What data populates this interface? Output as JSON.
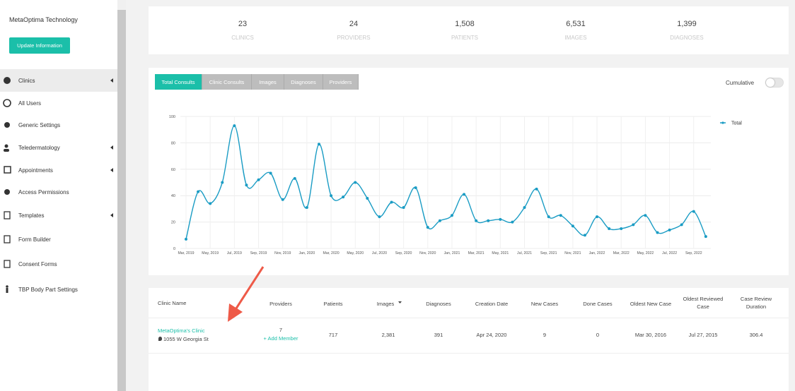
{
  "sidebar": {
    "org_name": "MetaOptima Technology",
    "button": "Update Information",
    "items": [
      "Clinics",
      "All Users",
      "Generic Settings",
      "Teledermatology",
      "Appointments",
      "Access Permissions",
      "Templates",
      "Form Builder",
      "Consent Forms",
      "TBP Body Part Settings"
    ]
  },
  "stats": [
    {
      "value": "23",
      "label": "CLINICS"
    },
    {
      "value": "24",
      "label": "PROVIDERS"
    },
    {
      "value": "1,508",
      "label": "PATIENTS"
    },
    {
      "value": "6,531",
      "label": "IMAGES"
    },
    {
      "value": "1,399",
      "label": "DIAGNOSES"
    }
  ],
  "tabs": [
    "Total Consults",
    "Clinic Consults",
    "Images",
    "Diagnoses",
    "Providers"
  ],
  "cumulative_label": "Cumulative",
  "chart_data": {
    "type": "line",
    "categories": [
      "Mar, 2019",
      null,
      "May, 2019",
      null,
      "Jul, 2019",
      null,
      "Sep, 2019",
      null,
      "Nov, 2019",
      null,
      "Jan, 2020",
      null,
      "Mar, 2020",
      null,
      "May, 2020",
      null,
      "Jul, 2020",
      null,
      "Sep, 2020",
      null,
      "Nov, 2020",
      null,
      "Jan, 2021",
      null,
      "Mar, 2021",
      null,
      "May, 2021",
      null,
      "Jul, 2021",
      null,
      "Sep, 2021",
      null,
      "Nov, 2021",
      null,
      "Jan, 2022",
      null,
      "Mar, 2022",
      null,
      "May, 2022",
      null,
      "Jul, 2022",
      null,
      "Sep, 2022",
      null
    ],
    "series": [
      {
        "name": "Total",
        "color": "#1a9cc4",
        "values": [
          7,
          43,
          34,
          50,
          93,
          48,
          52,
          57,
          37,
          53,
          31,
          79,
          40,
          39,
          50,
          38,
          24,
          35,
          31,
          46,
          16,
          21,
          25,
          41,
          21,
          21,
          22,
          20,
          31,
          45,
          24,
          25,
          17,
          10,
          24,
          15,
          15,
          18,
          25,
          12,
          14,
          18,
          28,
          9
        ]
      }
    ],
    "ylim": [
      0,
      100
    ],
    "yticks": [
      0,
      20,
      40,
      60,
      80,
      100
    ],
    "grid": true,
    "legend": "top-right"
  },
  "table": {
    "headers": [
      "Clinic Name",
      "Providers",
      "Patients",
      "Images",
      "Diagnoses",
      "Creation Date",
      "New Cases",
      "Done Cases",
      "Oldest New Case",
      "Oldest Reviewed Case",
      "Case Review Duration"
    ],
    "rows": [
      {
        "name": "MetaOptima's Clinic",
        "address": "1055 W Georgia St",
        "providers": "7",
        "add_member": "+ Add Member",
        "cells": [
          "717",
          "2,381",
          "391",
          "Apr 24, 2020",
          "9",
          "0",
          "Mar 30, 2016",
          "Jul 27, 2015",
          "306.4"
        ]
      }
    ]
  }
}
